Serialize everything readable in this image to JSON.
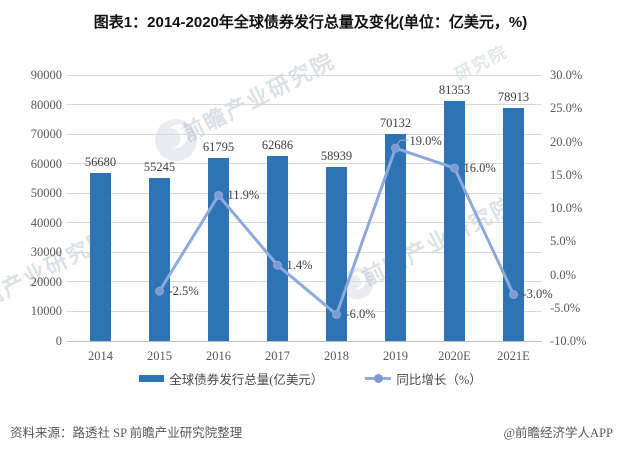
{
  "title": "图表1：2014-2020年全球债券发行总量及变化(单位：亿美元，%)",
  "footer": {
    "source": "资料来源：路透社 SP 前瞻产业研究院整理",
    "credit": "@前瞻经济学人APP"
  },
  "watermark": {
    "brand": "前瞻产业研究院",
    "partial": "研究院"
  },
  "colors": {
    "bar": "#2E74B5",
    "line": "#8EA9DB",
    "marker": "#7E9AD3",
    "grid": "#D9D9D9",
    "axis_line": "#BFBFBF",
    "axis_text": "#595959",
    "label_text": "#404040"
  },
  "chart_data": {
    "type": "bar",
    "subtype": "combo-bar-line",
    "title": "图表1：2014-2020年全球债券发行总量及变化(单位：亿美元，%)",
    "categories": [
      "2014",
      "2015",
      "2016",
      "2017",
      "2018",
      "2019",
      "2020E",
      "2021E"
    ],
    "series": [
      {
        "name": "全球债券发行总量(亿美元）",
        "type": "bar",
        "axis": "left",
        "values": [
          56680,
          55245,
          61795,
          62686,
          58939,
          70132,
          81353,
          78913
        ]
      },
      {
        "name": "同比增长（%）",
        "type": "line",
        "axis": "right",
        "values": [
          null,
          -2.5,
          11.9,
          1.4,
          -6.0,
          19.0,
          16.0,
          -3.0
        ],
        "point_labels": [
          "",
          "-2.5%",
          "11.9%",
          "1.4%",
          "-6.0%",
          "19.0%",
          "16.0%",
          "-3.0%"
        ]
      }
    ],
    "left_axis": {
      "min": 0,
      "max": 90000,
      "step": 10000,
      "labels": [
        "0",
        "10000",
        "20000",
        "30000",
        "40000",
        "50000",
        "60000",
        "70000",
        "80000",
        "90000"
      ]
    },
    "right_axis": {
      "min": -10,
      "max": 30,
      "step": 5,
      "labels": [
        "-10.0%",
        "-5.0%",
        "0.0%",
        "5.0%",
        "10.0%",
        "15.0%",
        "20.0%",
        "25.0%",
        "30.0%"
      ]
    },
    "grid": true,
    "legend_position": "bottom"
  }
}
